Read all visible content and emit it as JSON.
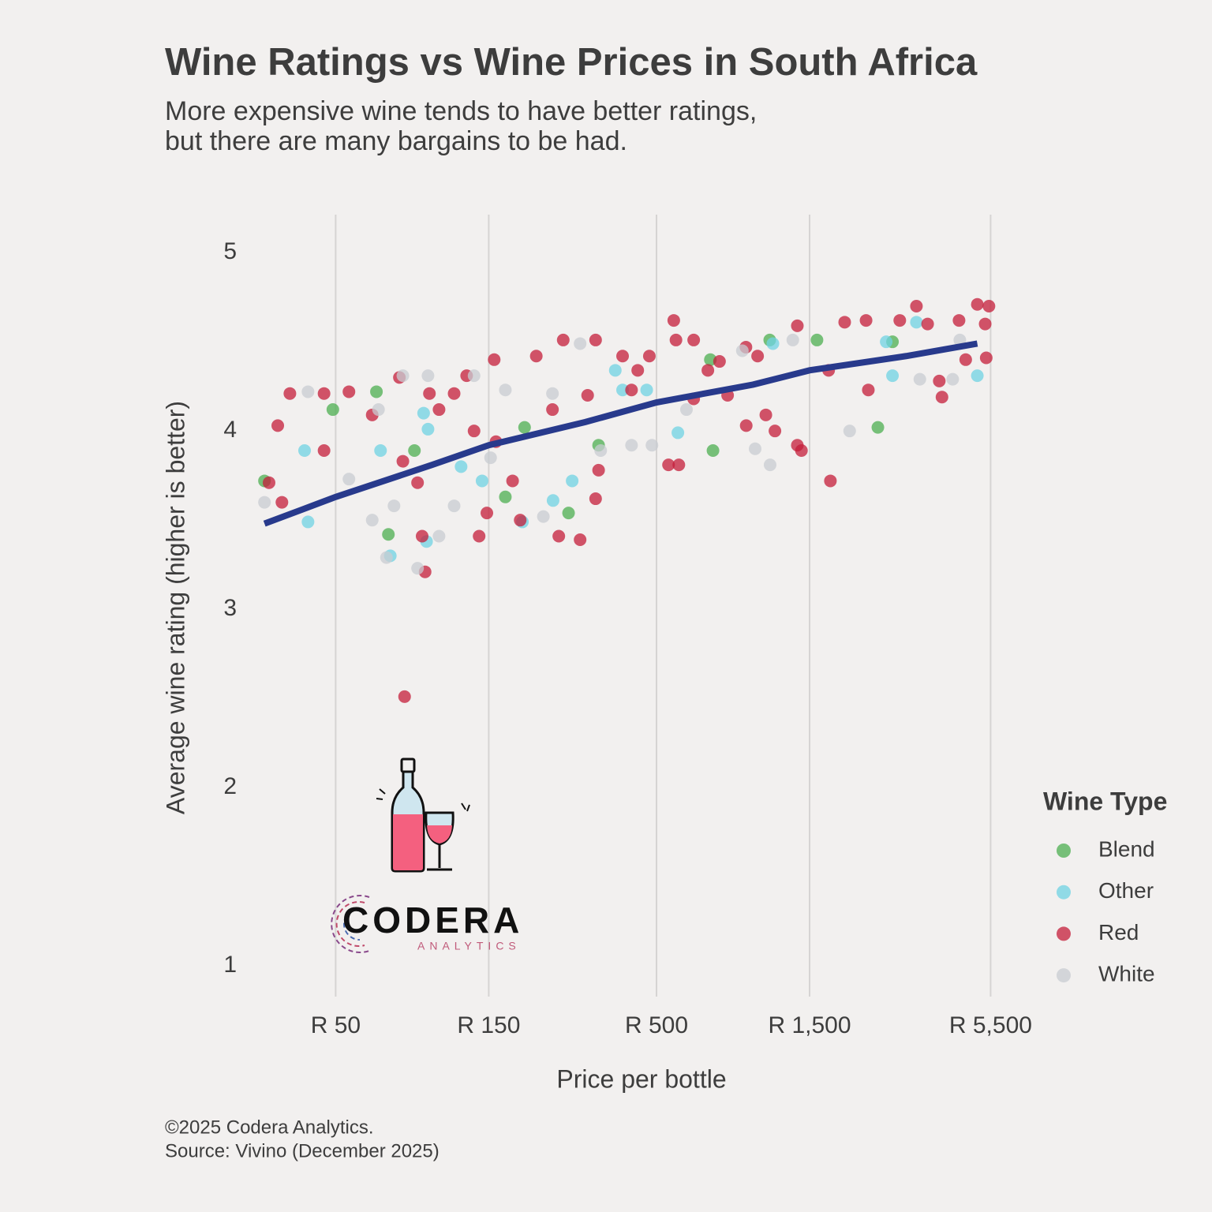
{
  "chart_data": {
    "type": "scatter",
    "title": "Wine Ratings vs Wine Prices in South Africa",
    "subtitle": [
      "More expensive wine tends to have better ratings,",
      "but there are many bargains to be had."
    ],
    "x_label": "Price per bottle",
    "y_label": "Average wine rating (higher is better)",
    "caption": [
      "©2025 Codera Analytics.",
      "Source: Vivino (December 2025)"
    ],
    "logo": {
      "name": "CODERA",
      "tagline": "ANALYTICS"
    },
    "x_log": true,
    "grid": "x",
    "xlim": [
      25,
      7000
    ],
    "ylim": [
      0.85,
      5.2
    ],
    "xticks": [
      {
        "value": 50,
        "label": "R 50"
      },
      {
        "value": 150,
        "label": "R 150"
      },
      {
        "value": 500,
        "label": "R 500"
      },
      {
        "value": 1500,
        "label": "R 1,500"
      },
      {
        "value": 5500,
        "label": "R 5,500"
      }
    ],
    "yticks": [
      1,
      2,
      3,
      4,
      5
    ],
    "legend_title": "Wine Type",
    "legend_position": "right",
    "opacity": 0.75,
    "series": [
      {
        "name": "Blend",
        "color": "#4caf50",
        "x": [
          30,
          49,
          67,
          73,
          88,
          194,
          330,
          736,
          750,
          1127,
          1582,
          2449,
          2720,
          266,
          169
        ],
        "values": [
          3.72,
          4.12,
          4.22,
          3.42,
          3.89,
          4.02,
          3.92,
          4.4,
          3.89,
          4.51,
          4.51,
          4.02,
          4.5,
          3.54,
          3.63
        ]
      },
      {
        "name": "Other",
        "color": "#6fd3e3",
        "x": [
          40,
          41,
          69,
          94,
          97,
          96,
          74,
          123,
          191,
          238,
          372,
          392,
          583,
          1153,
          2720,
          2600,
          3230,
          5000,
          273,
          143,
          466
        ],
        "values": [
          3.89,
          3.49,
          3.89,
          4.1,
          4.01,
          3.38,
          3.3,
          3.8,
          3.49,
          3.61,
          4.34,
          4.23,
          3.99,
          4.49,
          4.31,
          4.5,
          4.61,
          4.31,
          3.72,
          3.72,
          4.23
        ]
      },
      {
        "name": "Red",
        "color": "#c41e3a",
        "x": [
          82,
          31,
          33,
          36,
          34,
          46,
          46,
          55,
          65,
          79,
          81,
          90,
          95,
          93,
          98,
          105,
          117,
          128,
          135,
          140,
          148,
          156,
          158,
          178,
          188,
          211,
          237,
          248,
          256,
          289,
          305,
          323,
          330,
          323,
          392,
          418,
          437,
          475,
          545,
          566,
          575,
          587,
          653,
          723,
          786,
          833,
          952,
          1033,
          1096,
          1170,
          1374,
          1374,
          1415,
          1742,
          1720,
          1930,
          2250,
          2287,
          2866,
          3230,
          3500,
          3805,
          3880,
          4385,
          5000,
          5290,
          5330,
          5435,
          4600,
          950,
          653
        ],
        "values": [
          2.51,
          3.71,
          4.03,
          4.21,
          3.6,
          4.21,
          3.89,
          4.22,
          4.09,
          4.3,
          3.83,
          3.71,
          3.21,
          3.41,
          4.21,
          4.12,
          4.21,
          4.31,
          4.0,
          3.41,
          3.54,
          4.4,
          3.94,
          3.72,
          3.5,
          4.42,
          4.12,
          3.41,
          4.51,
          3.39,
          4.2,
          4.51,
          3.78,
          3.62,
          4.42,
          4.23,
          4.34,
          4.42,
          3.81,
          4.62,
          4.51,
          3.81,
          4.18,
          4.34,
          4.39,
          4.2,
          4.03,
          4.42,
          4.09,
          4.0,
          4.59,
          3.92,
          3.89,
          3.72,
          4.34,
          4.61,
          4.62,
          4.23,
          4.62,
          4.7,
          4.6,
          4.28,
          4.19,
          4.62,
          4.71,
          4.6,
          4.41,
          4.7,
          4.4,
          4.47,
          4.51
        ]
      },
      {
        "name": "White",
        "color": "#c8ccd2",
        "x": [
          30,
          41,
          55,
          68,
          65,
          72,
          81,
          90,
          97,
          105,
          135,
          169,
          222,
          289,
          335,
          418,
          484,
          620,
          1015,
          1130,
          2000,
          3310,
          4190,
          4410,
          1330,
          926,
          117,
          76,
          152,
          237
        ],
        "values": [
          3.6,
          4.22,
          3.73,
          4.12,
          3.5,
          3.29,
          4.31,
          3.23,
          4.31,
          3.41,
          4.31,
          4.23,
          3.52,
          4.49,
          3.89,
          3.92,
          3.92,
          4.12,
          3.9,
          3.81,
          4.0,
          4.29,
          4.29,
          4.51,
          4.51,
          4.45,
          3.58,
          3.58,
          3.85,
          4.21
        ]
      }
    ],
    "trend": {
      "color": "#283a8c",
      "x": [
        30,
        50,
        100,
        150,
        300,
        500,
        1000,
        1500,
        3000,
        5000
      ],
      "values": [
        3.48,
        3.63,
        3.81,
        3.92,
        4.05,
        4.16,
        4.26,
        4.34,
        4.42,
        4.49
      ]
    }
  }
}
